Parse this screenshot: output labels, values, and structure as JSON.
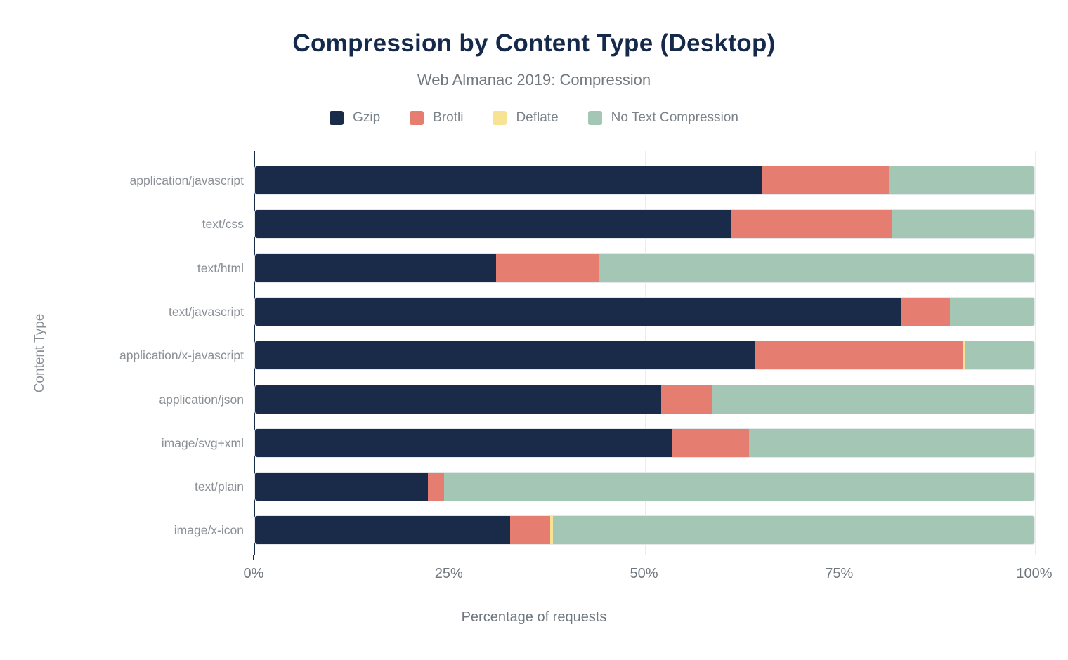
{
  "chart_data": {
    "type": "bar",
    "orientation": "horizontal",
    "stacked": true,
    "title": "Compression by Content Type (Desktop)",
    "subtitle": "Web Almanac 2019: Compression",
    "xlabel": "Percentage of requests",
    "ylabel": "Content Type",
    "xlim": [
      0,
      100
    ],
    "x_tick_labels": [
      "0%",
      "25%",
      "50%",
      "75%",
      "100%"
    ],
    "x_tick_values": [
      0,
      25,
      50,
      75,
      100
    ],
    "grid": true,
    "legend_position": "top",
    "categories": [
      "application/javascript",
      "text/css",
      "text/html",
      "text/javascript",
      "application/x-javascript",
      "application/json",
      "image/svg+xml",
      "text/plain",
      "image/x-icon"
    ],
    "series": [
      {
        "name": "Gzip",
        "color": "#1a2b49",
        "values": [
          65.0,
          61.1,
          30.9,
          83.0,
          64.1,
          52.1,
          53.6,
          22.2,
          32.7
        ]
      },
      {
        "name": "Brotli",
        "color": "#e57e71",
        "values": [
          16.3,
          20.7,
          13.2,
          6.2,
          26.8,
          6.5,
          9.8,
          2.1,
          5.2
        ]
      },
      {
        "name": "Deflate",
        "color": "#f8e395",
        "values": [
          0.0,
          0.0,
          0.0,
          0.0,
          0.3,
          0.0,
          0.0,
          0.0,
          0.3
        ]
      },
      {
        "name": "No Text Compression",
        "color": "#a3c7b4",
        "values": [
          18.7,
          18.2,
          55.9,
          10.8,
          8.8,
          41.4,
          36.6,
          75.7,
          61.8
        ]
      }
    ],
    "colors": {
      "title": "#15294b",
      "subtitle": "#71797f",
      "axis_line": "#1a2b49",
      "gridline": "#e9edf0",
      "tick_text": "#6f777e",
      "category_text": "#8a9096"
    }
  }
}
